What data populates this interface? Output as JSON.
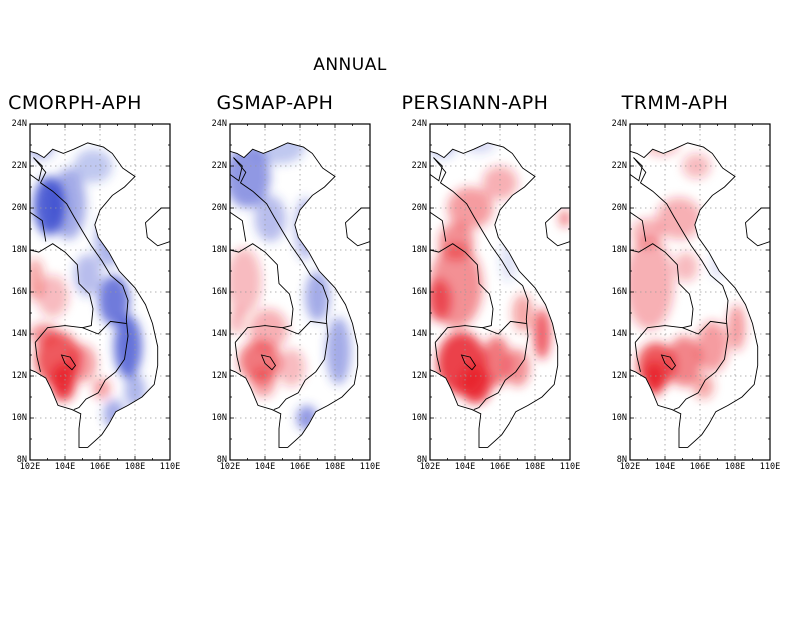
{
  "title": "ANNUAL",
  "panels": [
    {
      "id": "cmorph",
      "label": "CMORPH-APH",
      "pattern": "north_blue_south_red"
    },
    {
      "id": "gsmap",
      "label": "GSMAP-APH",
      "pattern": "north_blue_south_mixed"
    },
    {
      "id": "persiann",
      "label": "PERSIANN-APH",
      "pattern": "mostly_red"
    },
    {
      "id": "trmm",
      "label": "TRMM-APH",
      "pattern": "mostly_light_red"
    }
  ],
  "axes": {
    "lat_ticks": [
      "24N",
      "22N",
      "20N",
      "18N",
      "16N",
      "14N",
      "12N",
      "10N",
      "8N"
    ],
    "lon_ticks": [
      "102E",
      "104E",
      "106E",
      "108E",
      "110E"
    ],
    "lat_range": [
      8,
      24
    ],
    "lon_range": [
      102,
      110
    ]
  },
  "colors": {
    "positive": "#e8202a",
    "negative": "#3344cc",
    "border": "#000000",
    "grid": "#999999"
  }
}
